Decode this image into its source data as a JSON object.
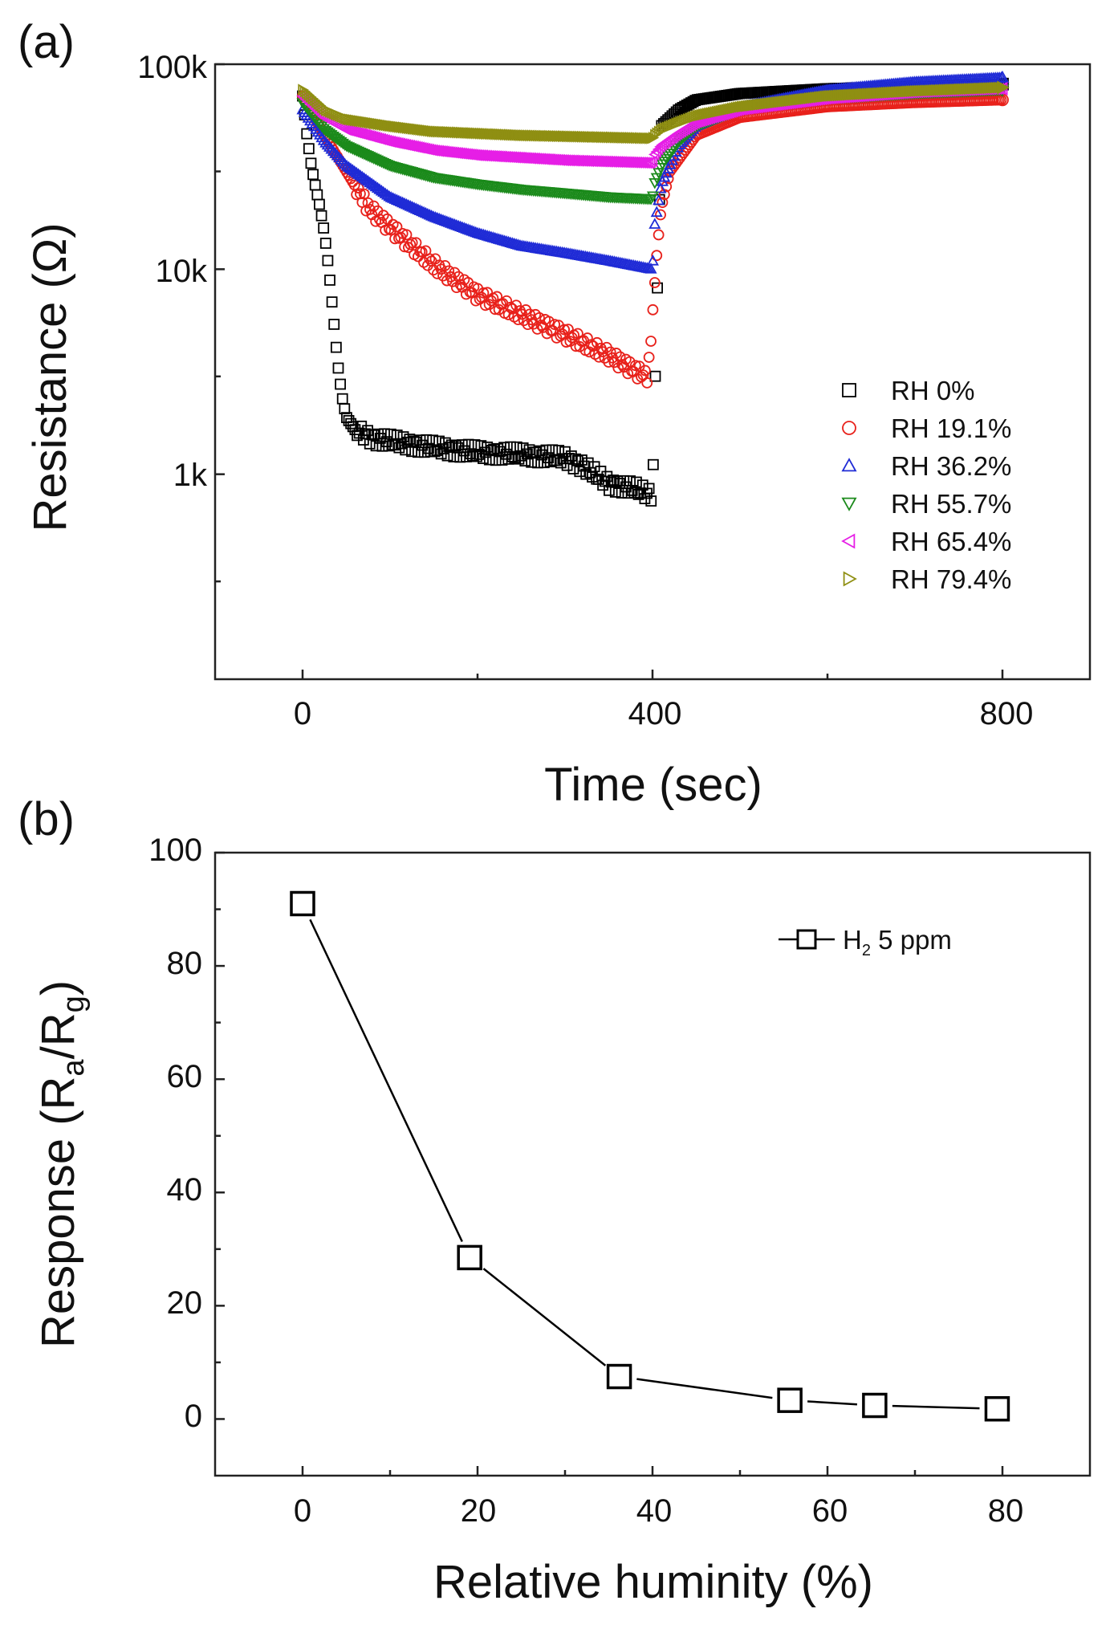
{
  "chart_data": [
    {
      "panel": "(a)",
      "type": "scatter",
      "xlabel": "Time (sec)",
      "ylabel": "Resistance (Ω)",
      "x_ticks": [
        "0",
        "400",
        "800"
      ],
      "y_ticks": [
        "1k",
        "10k",
        "100k"
      ],
      "xlim": [
        -100,
        900
      ],
      "ylim": [
        100,
        100000
      ],
      "yscale": "log",
      "legend_position": "right",
      "series": [
        {
          "name": "RH 0%",
          "marker": "square",
          "color": "#000000",
          "x": [
            0,
            5,
            10,
            15,
            20,
            25,
            30,
            35,
            40,
            45,
            50,
            60,
            80,
            100,
            150,
            200,
            250,
            300,
            320,
            350,
            380,
            395,
            400,
            410,
            430,
            450,
            500,
            600,
            700,
            800
          ],
          "y": [
            70000,
            45000,
            32000,
            25000,
            20000,
            15000,
            10000,
            6000,
            3500,
            2400,
            1900,
            1650,
            1500,
            1450,
            1350,
            1280,
            1250,
            1200,
            1100,
            900,
            850,
            800,
            800,
            50000,
            60000,
            67000,
            72000,
            76000,
            78000,
            80000
          ]
        },
        {
          "name": "RH 19.1%",
          "marker": "circle",
          "color": "#e8211b",
          "x": [
            0,
            25,
            50,
            75,
            100,
            150,
            200,
            250,
            300,
            350,
            380,
            395,
            400,
            405,
            410,
            420,
            450,
            500,
            600,
            700,
            800
          ],
          "y": [
            70000,
            45000,
            30000,
            20000,
            16000,
            10500,
            7500,
            6000,
            4800,
            3800,
            3200,
            3000,
            6000,
            12000,
            20000,
            30000,
            45000,
            55000,
            62000,
            65000,
            67000
          ]
        },
        {
          "name": "RH 36.2%",
          "marker": "triangle-up",
          "color": "#1f2bd6",
          "x": [
            0,
            25,
            50,
            100,
            150,
            200,
            250,
            300,
            350,
            400,
            402,
            410,
            430,
            450,
            500,
            600,
            700,
            800
          ],
          "y": [
            60000,
            42000,
            32000,
            22500,
            18000,
            15000,
            13000,
            12000,
            11000,
            10000,
            16000,
            26000,
            40000,
            50000,
            62000,
            75000,
            82000,
            86000
          ]
        },
        {
          "name": "RH 55.7%",
          "marker": "triangle-down",
          "color": "#1b8a1b",
          "x": [
            0,
            25,
            50,
            100,
            150,
            200,
            250,
            300,
            350,
            400,
            402,
            410,
            430,
            450,
            500,
            600,
            700,
            800
          ],
          "y": [
            65000,
            48000,
            40000,
            32000,
            28000,
            26000,
            24500,
            23500,
            22500,
            22000,
            26000,
            32000,
            42000,
            50000,
            60000,
            68000,
            72000,
            75000
          ]
        },
        {
          "name": "RH 65.4%",
          "marker": "triangle-left",
          "color": "#e61ee6",
          "x": [
            0,
            25,
            50,
            100,
            150,
            200,
            250,
            300,
            350,
            400,
            402,
            410,
            430,
            450,
            500,
            600,
            700,
            800
          ],
          "y": [
            70000,
            55000,
            48000,
            42000,
            38000,
            36000,
            35000,
            34000,
            33500,
            33000,
            36000,
            40000,
            46000,
            52000,
            60000,
            68000,
            73000,
            76000
          ]
        },
        {
          "name": "RH 79.4%",
          "marker": "triangle-right",
          "color": "#8f8f12",
          "x": [
            0,
            25,
            50,
            100,
            150,
            200,
            250,
            300,
            350,
            400,
            402,
            410,
            430,
            450,
            500,
            600,
            700,
            800
          ],
          "y": [
            75000,
            60000,
            54000,
            50000,
            47000,
            46000,
            45000,
            44500,
            44000,
            43500,
            45000,
            48000,
            52000,
            56000,
            62000,
            70000,
            74000,
            77000
          ]
        }
      ]
    },
    {
      "panel": "(b)",
      "type": "line",
      "xlabel": "Relative huminity (%)",
      "ylabel_main": "Response (R",
      "ylabel_sub1": "a",
      "ylabel_mid": "/R",
      "ylabel_sub2": "g",
      "ylabel_end": ")",
      "x_ticks": [
        "0",
        "20",
        "40",
        "60",
        "80"
      ],
      "y_ticks": [
        "0",
        "20",
        "40",
        "60",
        "80",
        "100"
      ],
      "xlim": [
        -10,
        90
      ],
      "ylim": [
        -10,
        100
      ],
      "legend_position": "top-right",
      "series": [
        {
          "name_main": "H",
          "name_sub": "2",
          "name_end": " 5 ppm",
          "marker": "square",
          "color": "#000000",
          "x": [
            0,
            19.1,
            36.2,
            55.7,
            65.4,
            79.4
          ],
          "y": [
            91,
            28.5,
            7.5,
            3.3,
            2.4,
            1.8
          ]
        }
      ]
    }
  ]
}
